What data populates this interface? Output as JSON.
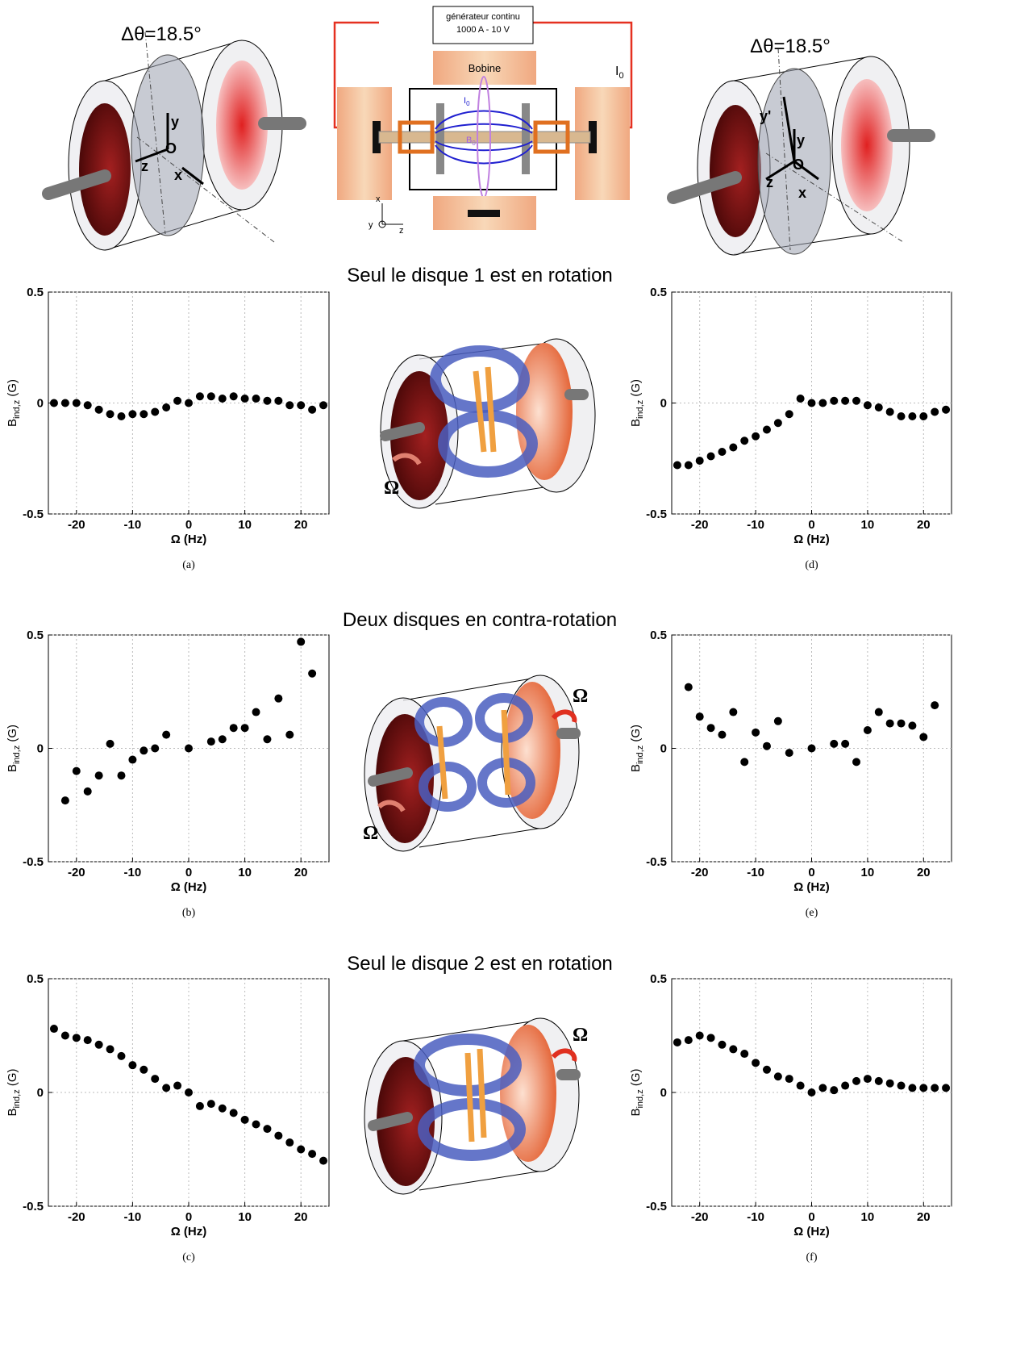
{
  "sections": [
    "Seul le disque 1 est en rotation",
    "Deux disques en contra-rotation",
    "Seul le disque 2 est en rotation"
  ],
  "diagrams": {
    "left": {
      "angle": "Δθ=18.5°",
      "labels": [
        "y",
        "O",
        "z",
        "x"
      ]
    },
    "setup": {
      "generator": [
        "générateur continu",
        "1000 A - 10 V"
      ],
      "coil": "Bobine",
      "current": {
        "main": "I",
        "sub": "0"
      },
      "inner_current": {
        "main": "I",
        "sub": "0"
      },
      "field": {
        "main": "B",
        "sub": "0"
      },
      "axes": [
        "x",
        "y",
        "z"
      ]
    },
    "right": {
      "angle": "Δθ=18.5°",
      "labels": [
        "y'",
        "y",
        "O",
        "z",
        "x"
      ]
    },
    "omega": [
      "Ω",
      "Ω",
      "Ω",
      "Ω"
    ]
  },
  "chart_data": [
    {
      "type": "scatter",
      "caption": "(a)",
      "color": "#000000",
      "grid": true,
      "xlabel": "Ω (Hz)",
      "ylabel": {
        "main": "B",
        "sub": "ind,z",
        "unit": " (G)"
      },
      "xlim": [
        -25,
        25
      ],
      "ylim": [
        -0.5,
        0.5
      ],
      "xticks": [
        -20,
        -10,
        0,
        10,
        20
      ],
      "yticks": [
        -0.5,
        0,
        0.5
      ],
      "x": [
        -24,
        -22,
        -20,
        -18,
        -16,
        -14,
        -12,
        -10,
        -8,
        -6,
        -4,
        -2,
        0,
        2,
        4,
        6,
        8,
        10,
        12,
        14,
        16,
        18,
        20,
        22,
        24
      ],
      "values": [
        0,
        0,
        0,
        -0.01,
        -0.03,
        -0.05,
        -0.06,
        -0.05,
        -0.05,
        -0.04,
        -0.02,
        0.01,
        0,
        0.03,
        0.03,
        0.02,
        0.03,
        0.02,
        0.02,
        0.01,
        0.01,
        -0.01,
        -0.01,
        -0.03,
        -0.01
      ]
    },
    {
      "type": "scatter",
      "caption": "(b)",
      "color": "#000000",
      "grid": true,
      "xlabel": "Ω (Hz)",
      "ylabel": {
        "main": "B",
        "sub": "ind,z",
        "unit": " (G)"
      },
      "xlim": [
        -25,
        25
      ],
      "ylim": [
        -0.5,
        0.5
      ],
      "xticks": [
        -20,
        -10,
        0,
        10,
        20
      ],
      "yticks": [
        -0.5,
        0,
        0.5
      ],
      "x": [
        -22,
        -20,
        -18,
        -16,
        -14,
        -12,
        -10,
        -8,
        -6,
        -4,
        0,
        4,
        6,
        8,
        10,
        12,
        14,
        16,
        18,
        20,
        22
      ],
      "values": [
        -0.23,
        -0.1,
        -0.19,
        -0.12,
        0.02,
        -0.12,
        -0.05,
        -0.01,
        0,
        0.06,
        0,
        0.03,
        0.04,
        0.09,
        0.09,
        0.16,
        0.04,
        0.22,
        0.06,
        0.47,
        0.33
      ]
    },
    {
      "type": "scatter",
      "caption": "(c)",
      "color": "#000000",
      "grid": true,
      "xlabel": "Ω (Hz)",
      "ylabel": {
        "main": "B",
        "sub": "ind,z",
        "unit": " (G)"
      },
      "xlim": [
        -25,
        25
      ],
      "ylim": [
        -0.5,
        0.5
      ],
      "xticks": [
        -20,
        -10,
        0,
        10,
        20
      ],
      "yticks": [
        -0.5,
        0,
        0.5
      ],
      "x": [
        -24,
        -22,
        -20,
        -18,
        -16,
        -14,
        -12,
        -10,
        -8,
        -6,
        -4,
        -2,
        0,
        2,
        4,
        6,
        8,
        10,
        12,
        14,
        16,
        18,
        20,
        22,
        24
      ],
      "values": [
        0.28,
        0.25,
        0.24,
        0.23,
        0.21,
        0.19,
        0.16,
        0.12,
        0.1,
        0.06,
        0.02,
        0.03,
        0,
        -0.06,
        -0.05,
        -0.07,
        -0.09,
        -0.12,
        -0.14,
        -0.16,
        -0.19,
        -0.22,
        -0.25,
        -0.27,
        -0.3
      ]
    },
    {
      "type": "scatter",
      "caption": "(d)",
      "color": "#000000",
      "grid": true,
      "xlabel": "Ω (Hz)",
      "ylabel": {
        "main": "B",
        "sub": "ind,z",
        "unit": " (G)"
      },
      "xlim": [
        -25,
        25
      ],
      "ylim": [
        -0.5,
        0.5
      ],
      "xticks": [
        -20,
        -10,
        0,
        10,
        20
      ],
      "yticks": [
        -0.5,
        0,
        0.5
      ],
      "x": [
        -24,
        -22,
        -20,
        -18,
        -16,
        -14,
        -12,
        -10,
        -8,
        -6,
        -4,
        -2,
        0,
        2,
        4,
        6,
        8,
        10,
        12,
        14,
        16,
        18,
        20,
        22,
        24
      ],
      "values": [
        -0.28,
        -0.28,
        -0.26,
        -0.24,
        -0.22,
        -0.2,
        -0.17,
        -0.15,
        -0.12,
        -0.09,
        -0.05,
        0.02,
        0,
        0,
        0.01,
        0.01,
        0.01,
        -0.01,
        -0.02,
        -0.04,
        -0.06,
        -0.06,
        -0.06,
        -0.04,
        -0.03
      ]
    },
    {
      "type": "scatter",
      "caption": "(e)",
      "color": "#000000",
      "grid": true,
      "xlabel": "Ω (Hz)",
      "ylabel": {
        "main": "B",
        "sub": "ind,z",
        "unit": " (G)"
      },
      "xlim": [
        -25,
        25
      ],
      "ylim": [
        -0.5,
        0.5
      ],
      "xticks": [
        -20,
        -10,
        0,
        10,
        20
      ],
      "yticks": [
        -0.5,
        0,
        0.5
      ],
      "x": [
        -22,
        -20,
        -18,
        -16,
        -14,
        -12,
        -10,
        -8,
        -6,
        -4,
        0,
        4,
        6,
        8,
        10,
        12,
        14,
        16,
        18,
        20,
        22
      ],
      "values": [
        0.27,
        0.14,
        0.09,
        0.06,
        0.16,
        -0.06,
        0.07,
        0.01,
        0.12,
        -0.02,
        0,
        0.02,
        0.02,
        -0.06,
        0.08,
        0.16,
        0.11,
        0.11,
        0.1,
        0.05,
        0.19
      ]
    },
    {
      "type": "scatter",
      "caption": "(f)",
      "color": "#000000",
      "grid": true,
      "xlabel": "Ω (Hz)",
      "ylabel": {
        "main": "B",
        "sub": "ind,z",
        "unit": " (G)"
      },
      "xlim": [
        -25,
        25
      ],
      "ylim": [
        -0.5,
        0.5
      ],
      "xticks": [
        -20,
        -10,
        0,
        10,
        20
      ],
      "yticks": [
        -0.5,
        0,
        0.5
      ],
      "x": [
        -24,
        -22,
        -20,
        -18,
        -16,
        -14,
        -12,
        -10,
        -8,
        -6,
        -4,
        -2,
        0,
        2,
        4,
        6,
        8,
        10,
        12,
        14,
        16,
        18,
        20,
        22,
        24
      ],
      "values": [
        0.22,
        0.23,
        0.25,
        0.24,
        0.21,
        0.19,
        0.17,
        0.13,
        0.1,
        0.07,
        0.06,
        0.03,
        0,
        0.02,
        0.01,
        0.03,
        0.05,
        0.06,
        0.05,
        0.04,
        0.03,
        0.02,
        0.02,
        0.02,
        0.02
      ]
    }
  ]
}
